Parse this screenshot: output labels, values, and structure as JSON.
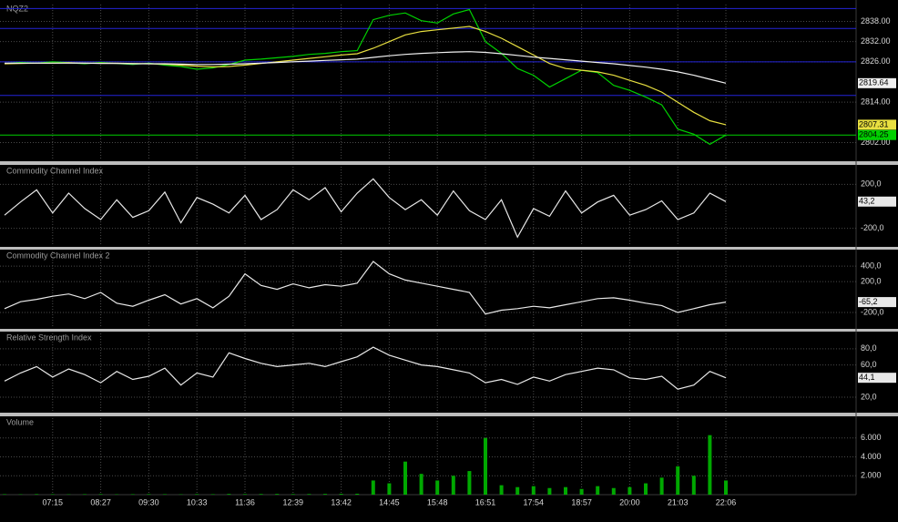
{
  "chart_data": [
    {
      "type": "line",
      "title": "NQZ2",
      "ylim": [
        2797,
        2843
      ],
      "yticks": [
        {
          "value": 2802,
          "label": "2802.00"
        },
        {
          "value": 2814,
          "label": "2814.00"
        },
        {
          "value": 2826,
          "label": "2826.00"
        },
        {
          "value": 2832,
          "label": "2832.00"
        },
        {
          "value": 2838,
          "label": "2838.00"
        }
      ],
      "grid": true,
      "last_value_box": true,
      "price_line": true,
      "levels": [
        2841.8,
        2835.9,
        2826,
        2816
      ],
      "level_color": "#2424d8",
      "series": [
        {
          "color": "#00d000",
          "values": [
            2825.5,
            2825.8,
            2825.6,
            2826,
            2825.7,
            2825.4,
            2825.8,
            2825.5,
            2825.2,
            2825.6,
            2825,
            2824.6,
            2823.8,
            2824.2,
            2825.2,
            2826.5,
            2826.8,
            2827.2,
            2827.6,
            2828.2,
            2828.5,
            2829,
            2829.3,
            2838.5,
            2839.8,
            2840.5,
            2838.2,
            2837.5,
            2840.2,
            2841.5,
            2832,
            2828.5,
            2824,
            2822,
            2818.5,
            2821,
            2823.5,
            2822.8,
            2819,
            2817.5,
            2815.5,
            2813.2,
            2806,
            2804.5,
            2801.5,
            2804.25
          ]
        },
        {
          "color": "#e8e040",
          "values": [
            2825.4,
            2825.5,
            2825.6,
            2825.6,
            2825.7,
            2825.6,
            2825.6,
            2825.6,
            2825.5,
            2825.4,
            2825.3,
            2825,
            2824.7,
            2824.5,
            2824.6,
            2825,
            2825.5,
            2826,
            2826.5,
            2827,
            2827.5,
            2828,
            2828.4,
            2830,
            2832,
            2834,
            2835,
            2835.5,
            2836,
            2836.5,
            2835,
            2833,
            2830.5,
            2828,
            2825.5,
            2824,
            2823.5,
            2823,
            2822,
            2820.5,
            2819,
            2817,
            2814,
            2811,
            2808.5,
            2807.31
          ]
        },
        {
          "color": "#f0f0f0",
          "values": [
            2825.6,
            2825.6,
            2825.6,
            2825.6,
            2825.6,
            2825.6,
            2825.5,
            2825.5,
            2825.4,
            2825.4,
            2825.4,
            2825.3,
            2825.2,
            2825.2,
            2825.3,
            2825.4,
            2825.6,
            2825.8,
            2826,
            2826.2,
            2826.4,
            2826.6,
            2826.8,
            2827.3,
            2827.8,
            2828.2,
            2828.5,
            2828.7,
            2828.9,
            2829,
            2828.8,
            2828.4,
            2827.9,
            2827.4,
            2827,
            2826.6,
            2826.2,
            2825.8,
            2825.4,
            2824.9,
            2824.4,
            2823.8,
            2823,
            2822,
            2820.8,
            2819.64
          ]
        }
      ]
    },
    {
      "type": "line",
      "title": "Commodity Channel Index",
      "ylim": [
        -360,
        360
      ],
      "yticks": [
        {
          "value": -200,
          "label": "-200,0"
        },
        {
          "value": 200,
          "label": "200,0"
        }
      ],
      "grid": true,
      "last_value_box": true,
      "series": [
        {
          "color": "#e8e8e8",
          "values": [
            -80,
            40,
            150,
            -60,
            120,
            -20,
            -120,
            60,
            -100,
            -40,
            130,
            -150,
            80,
            20,
            -60,
            100,
            -120,
            -30,
            150,
            60,
            170,
            -50,
            120,
            250,
            80,
            -30,
            60,
            -80,
            140,
            -40,
            -120,
            60,
            -280,
            -20,
            -90,
            140,
            -60,
            40,
            100,
            -80,
            -30,
            50,
            -120,
            -60,
            120,
            43.2
          ],
          "value_labels": [
            null,
            null,
            null,
            null,
            null,
            null,
            null,
            null,
            null,
            null,
            null,
            null,
            null,
            null,
            null,
            null,
            null,
            null,
            null,
            null,
            null,
            null,
            null,
            null,
            null,
            null,
            null,
            null,
            null,
            null,
            null,
            null,
            null,
            null,
            null,
            null,
            null,
            null,
            null,
            null,
            null,
            null,
            null,
            null,
            null,
            "43,2"
          ]
        }
      ]
    },
    {
      "type": "line",
      "title": "Commodity Channel Index 2",
      "ylim": [
        -400,
        590
      ],
      "yticks": [
        {
          "value": -200,
          "label": "-200,0"
        },
        {
          "value": 200,
          "label": "200,0"
        },
        {
          "value": 400,
          "label": "400,0"
        }
      ],
      "grid": true,
      "last_value_box": true,
      "series": [
        {
          "color": "#e8e8e8",
          "values": [
            -150,
            -60,
            -30,
            10,
            40,
            -20,
            60,
            -80,
            -120,
            -40,
            30,
            -90,
            -20,
            -140,
            10,
            300,
            150,
            100,
            170,
            120,
            160,
            140,
            180,
            460,
            300,
            220,
            180,
            140,
            100,
            60,
            -220,
            -170,
            -150,
            -120,
            -140,
            -100,
            -60,
            -20,
            -10,
            -40,
            -80,
            -110,
            -200,
            -150,
            -100,
            -65.2
          ],
          "value_labels": [
            null,
            null,
            null,
            null,
            null,
            null,
            null,
            null,
            null,
            null,
            null,
            null,
            null,
            null,
            null,
            null,
            null,
            null,
            null,
            null,
            null,
            null,
            null,
            null,
            null,
            null,
            null,
            null,
            null,
            null,
            null,
            null,
            null,
            null,
            null,
            null,
            null,
            null,
            null,
            null,
            null,
            null,
            null,
            null,
            null,
            "-65,2"
          ]
        }
      ]
    },
    {
      "type": "line",
      "title": "Relative Strength Index",
      "ylim": [
        2,
        99
      ],
      "yticks": [
        {
          "value": 20,
          "label": "20,0"
        },
        {
          "value": 60,
          "label": "60,0"
        },
        {
          "value": 80,
          "label": "80,0"
        }
      ],
      "grid": true,
      "last_value_box": true,
      "series": [
        {
          "color": "#e8e8e8",
          "values": [
            40,
            50,
            58,
            45,
            55,
            48,
            38,
            52,
            42,
            46,
            56,
            35,
            50,
            45,
            75,
            68,
            62,
            58,
            60,
            62,
            58,
            64,
            70,
            82,
            72,
            66,
            60,
            58,
            54,
            50,
            38,
            42,
            36,
            45,
            40,
            48,
            52,
            56,
            54,
            44,
            42,
            46,
            30,
            35,
            52,
            44.1
          ],
          "value_labels": [
            null,
            null,
            null,
            null,
            null,
            null,
            null,
            null,
            null,
            null,
            null,
            null,
            null,
            null,
            null,
            null,
            null,
            null,
            null,
            null,
            null,
            null,
            null,
            null,
            null,
            null,
            null,
            null,
            null,
            null,
            null,
            null,
            null,
            null,
            null,
            null,
            null,
            null,
            null,
            null,
            null,
            null,
            null,
            null,
            null,
            "44,1"
          ]
        }
      ]
    },
    {
      "type": "bar",
      "title": "Volume",
      "ylim": [
        0,
        8100
      ],
      "yticks": [
        {
          "value": 2000,
          "label": "2.000"
        },
        {
          "value": 4000,
          "label": "4.000"
        },
        {
          "value": 6000,
          "label": "6.000"
        }
      ],
      "grid": true,
      "color": "#00a800",
      "categories": [
        null,
        null,
        null,
        "07:15",
        null,
        null,
        "08:27",
        null,
        null,
        "09:30",
        null,
        null,
        "10:33",
        null,
        null,
        "11:36",
        null,
        null,
        "12:39",
        null,
        null,
        "13:42",
        null,
        null,
        "14:45",
        null,
        null,
        "15:48",
        null,
        null,
        "16:51",
        null,
        null,
        "17:54",
        null,
        null,
        "18:57",
        null,
        null,
        "20:00",
        null,
        null,
        "21:03",
        null,
        null,
        "22:06"
      ],
      "values": [
        50,
        40,
        60,
        50,
        40,
        50,
        60,
        40,
        50,
        60,
        50,
        40,
        60,
        50,
        80,
        60,
        70,
        80,
        60,
        70,
        80,
        90,
        100,
        1500,
        1200,
        3500,
        2200,
        1500,
        2000,
        2500,
        6000,
        1000,
        800,
        900,
        700,
        800,
        600,
        900,
        700,
        800,
        1200,
        1800,
        3000,
        2000,
        6300,
        1500
      ]
    }
  ]
}
